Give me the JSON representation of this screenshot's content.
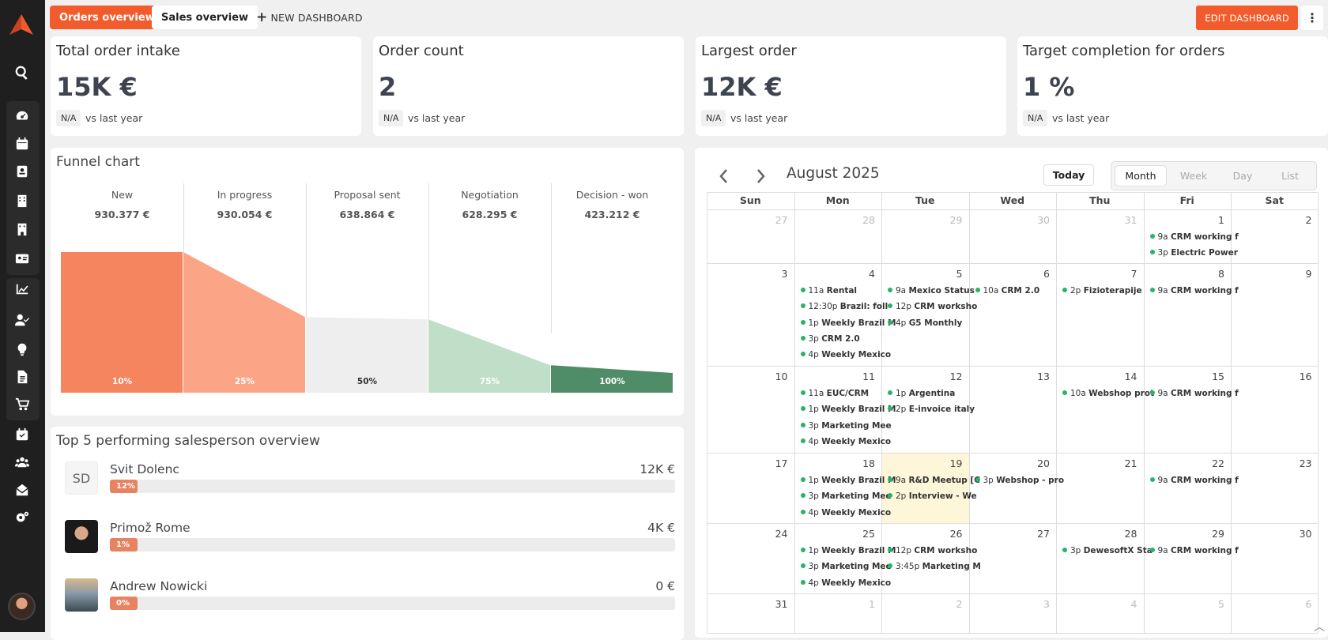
{
  "topbar": {
    "tabs": [
      {
        "label": "Orders overview",
        "active": true
      },
      {
        "label": "Sales overview",
        "active": false
      }
    ],
    "new_dashboard": "NEW DASHBOARD",
    "edit_dashboard": "EDIT DASHBOARD",
    "more": "⋮"
  },
  "kpis": [
    {
      "title": "Total order intake",
      "value": "15K €",
      "badge": "N/A",
      "compare": "vs last year"
    },
    {
      "title": "Order count",
      "value": "2",
      "badge": "N/A",
      "compare": "vs last year"
    },
    {
      "title": "Largest order",
      "value": "12K €",
      "badge": "N/A",
      "compare": "vs last year"
    },
    {
      "title": "Target completion for orders",
      "value": "1 %",
      "badge": "N/A",
      "compare": "vs last year"
    }
  ],
  "chart_data": {
    "type": "funnel",
    "title": "Funnel chart",
    "categories": [
      "New",
      "In progress",
      "Proposal sent",
      "Negotiation",
      "Decision - won"
    ],
    "values": [
      "930.377 €",
      "930.054 €",
      "638.864 €",
      "628.295 €",
      "423.212 €"
    ],
    "percent_labels": [
      "10%",
      "25%",
      "50%",
      "75%",
      "100%"
    ],
    "colors": [
      "#f4855e",
      "#fca586",
      "#eeeeee",
      "#c0dfc9",
      "#4e8d67"
    ]
  },
  "salespeople": {
    "title": "Top 5 performing salesperson overview",
    "items": [
      {
        "initials": "SD",
        "name": "Svit Dolenc",
        "amount": "12K €",
        "percent": "12%",
        "fraction": 0.12
      },
      {
        "initials": "",
        "name": "Primož Rome",
        "amount": "4K €",
        "percent": "1%",
        "fraction": 0.01
      },
      {
        "initials": "",
        "name": "Andrew Nowicki",
        "amount": "0 €",
        "percent": "0%",
        "fraction": 0.0
      }
    ]
  },
  "calendar": {
    "title": "August 2025",
    "today_label": "Today",
    "views": [
      "Month",
      "Week",
      "Day",
      "List"
    ],
    "active_view": "Month",
    "weekdays": [
      "Sun",
      "Mon",
      "Tue",
      "Wed",
      "Thu",
      "Fri",
      "Sat"
    ],
    "weeks": [
      [
        "27",
        "28",
        "29",
        "30",
        "31",
        "1",
        "2"
      ],
      [
        "3",
        "4",
        "5",
        "6",
        "7",
        "8",
        "9"
      ],
      [
        "10",
        "11",
        "12",
        "13",
        "14",
        "15",
        "16"
      ],
      [
        "17",
        "18",
        "19",
        "20",
        "21",
        "22",
        "23"
      ],
      [
        "24",
        "25",
        "26",
        "27",
        "28",
        "29",
        "30"
      ],
      [
        "31",
        "1",
        "2",
        "3",
        "4",
        "5",
        "6"
      ]
    ],
    "events": [
      {
        "week": 0,
        "day": 5,
        "items": [
          [
            "9a",
            "CRM working f"
          ],
          [
            "3p",
            "Electric Power"
          ]
        ]
      },
      {
        "week": 1,
        "day": 1,
        "items": [
          [
            "11a",
            "Rental"
          ],
          [
            "12:30p",
            "Brazil: foll"
          ],
          [
            "1p",
            "Weekly Brazil M"
          ],
          [
            "3p",
            "CRM 2.0"
          ],
          [
            "4p",
            "Weekly Mexico"
          ]
        ]
      },
      {
        "week": 1,
        "day": 2,
        "items": [
          [
            "9a",
            "Mexico Status"
          ],
          [
            "12p",
            "CRM worksho"
          ],
          [
            "4p",
            "G5 Monthly"
          ]
        ]
      },
      {
        "week": 1,
        "day": 3,
        "items": [
          [
            "10a",
            "CRM 2.0"
          ]
        ]
      },
      {
        "week": 1,
        "day": 4,
        "items": [
          [
            "2p",
            "Fizioterapije"
          ]
        ]
      },
      {
        "week": 1,
        "day": 5,
        "items": [
          [
            "9a",
            "CRM working f"
          ]
        ]
      },
      {
        "week": 2,
        "day": 1,
        "items": [
          [
            "11a",
            "EUC/CRM"
          ],
          [
            "1p",
            "Weekly Brazil M"
          ],
          [
            "3p",
            "Marketing Mee"
          ],
          [
            "4p",
            "Weekly Mexico"
          ]
        ]
      },
      {
        "week": 2,
        "day": 2,
        "items": [
          [
            "1p",
            "Argentina"
          ],
          [
            "2p",
            "E-invoice italy"
          ]
        ]
      },
      {
        "week": 2,
        "day": 4,
        "items": [
          [
            "10a",
            "Webshop prot"
          ]
        ]
      },
      {
        "week": 2,
        "day": 5,
        "items": [
          [
            "9a",
            "CRM working f"
          ]
        ]
      },
      {
        "week": 3,
        "day": 1,
        "items": [
          [
            "1p",
            "Weekly Brazil M"
          ],
          [
            "3p",
            "Marketing Mee"
          ],
          [
            "4p",
            "Weekly Mexico"
          ]
        ]
      },
      {
        "week": 3,
        "day": 2,
        "items": [
          [
            "9a",
            "R&D Meetup [C"
          ],
          [
            "2p",
            "Interview - We"
          ]
        ]
      },
      {
        "week": 3,
        "day": 3,
        "items": [
          [
            "3p",
            "Webshop - pro"
          ]
        ]
      },
      {
        "week": 3,
        "day": 5,
        "items": [
          [
            "9a",
            "CRM working f"
          ]
        ]
      },
      {
        "week": 4,
        "day": 1,
        "items": [
          [
            "1p",
            "Weekly Brazil M"
          ],
          [
            "3p",
            "Marketing Mee"
          ],
          [
            "4p",
            "Weekly Mexico"
          ]
        ]
      },
      {
        "week": 4,
        "day": 2,
        "items": [
          [
            "12p",
            "CRM worksho"
          ],
          [
            "3:45p",
            "Marketing M"
          ]
        ]
      },
      {
        "week": 4,
        "day": 4,
        "items": [
          [
            "3p",
            "DewesoftX Sta"
          ]
        ]
      },
      {
        "week": 4,
        "day": 5,
        "items": [
          [
            "9a",
            "CRM working f"
          ]
        ]
      }
    ]
  }
}
